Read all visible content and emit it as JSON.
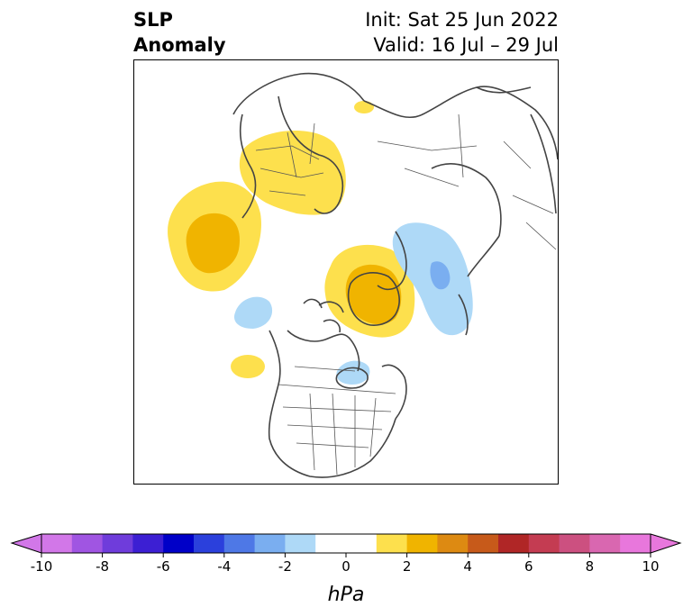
{
  "title": {
    "left_line1": "SLP",
    "left_line2": "Anomaly",
    "right_line1": "Init: Sat 25 Jun 2022",
    "right_line2": "Valid: 16 Jul – 29 Jul"
  },
  "colorbar": {
    "unit": "hPa",
    "range": [
      -10,
      10
    ],
    "ticks": [
      "-10",
      "-8",
      "-6",
      "-4",
      "-2",
      "0",
      "2",
      "4",
      "6",
      "8",
      "10"
    ],
    "bins": [
      {
        "from": -10,
        "to": -9,
        "color": "#d277e8"
      },
      {
        "from": -9,
        "to": -8,
        "color": "#a055e2"
      },
      {
        "from": -8,
        "to": -7,
        "color": "#6f3cdb"
      },
      {
        "from": -7,
        "to": -6,
        "color": "#3c1fd3"
      },
      {
        "from": -6,
        "to": -5,
        "color": "#0000c8"
      },
      {
        "from": -5,
        "to": -4,
        "color": "#2b40dc"
      },
      {
        "from": -4,
        "to": -3,
        "color": "#4e78e6"
      },
      {
        "from": -3,
        "to": -2,
        "color": "#7aaef0"
      },
      {
        "from": -2,
        "to": -1,
        "color": "#aed9f7"
      },
      {
        "from": -1,
        "to": 1,
        "color": "#ffffff"
      },
      {
        "from": 1,
        "to": 2,
        "color": "#fde04d"
      },
      {
        "from": 2,
        "to": 3,
        "color": "#f0b400"
      },
      {
        "from": 3,
        "to": 4,
        "color": "#dd8a12"
      },
      {
        "from": 4,
        "to": 5,
        "color": "#c75a1a"
      },
      {
        "from": 5,
        "to": 6,
        "color": "#b02626"
      },
      {
        "from": 6,
        "to": 7,
        "color": "#c43c52"
      },
      {
        "from": 7,
        "to": 8,
        "color": "#cc5080"
      },
      {
        "from": 8,
        "to": 9,
        "color": "#d967b0"
      },
      {
        "from": 9,
        "to": 10,
        "color": "#e877dc"
      }
    ],
    "extend_low_color": "#d277e8",
    "extend_high_color": "#e877dc"
  },
  "map": {
    "projection": "north-polar-stereographic",
    "coastline_color": "#444444",
    "anomaly_regions": [
      {
        "region": "scandinavia-europe",
        "level": "+1 to +2",
        "color": "#fde04d"
      },
      {
        "region": "north-atlantic-west-of-europe",
        "level": "+2 to +3",
        "color": "#f0b400"
      },
      {
        "region": "svalbard-kara",
        "level": "+1 to +2",
        "color": "#fde04d"
      },
      {
        "region": "greenland",
        "level": "+2 to +3",
        "color": "#f0b400"
      },
      {
        "region": "east-siberia-bering",
        "level": "-1 to -3",
        "color": "#aed9f7"
      },
      {
        "region": "north-atlantic-west",
        "level": "-1 to -2",
        "color": "#aed9f7"
      },
      {
        "region": "hudson-bay",
        "level": "-1 to -2",
        "color": "#aed9f7"
      },
      {
        "region": "mid-atlantic",
        "level": "+1 to +2",
        "color": "#fde04d"
      }
    ]
  }
}
